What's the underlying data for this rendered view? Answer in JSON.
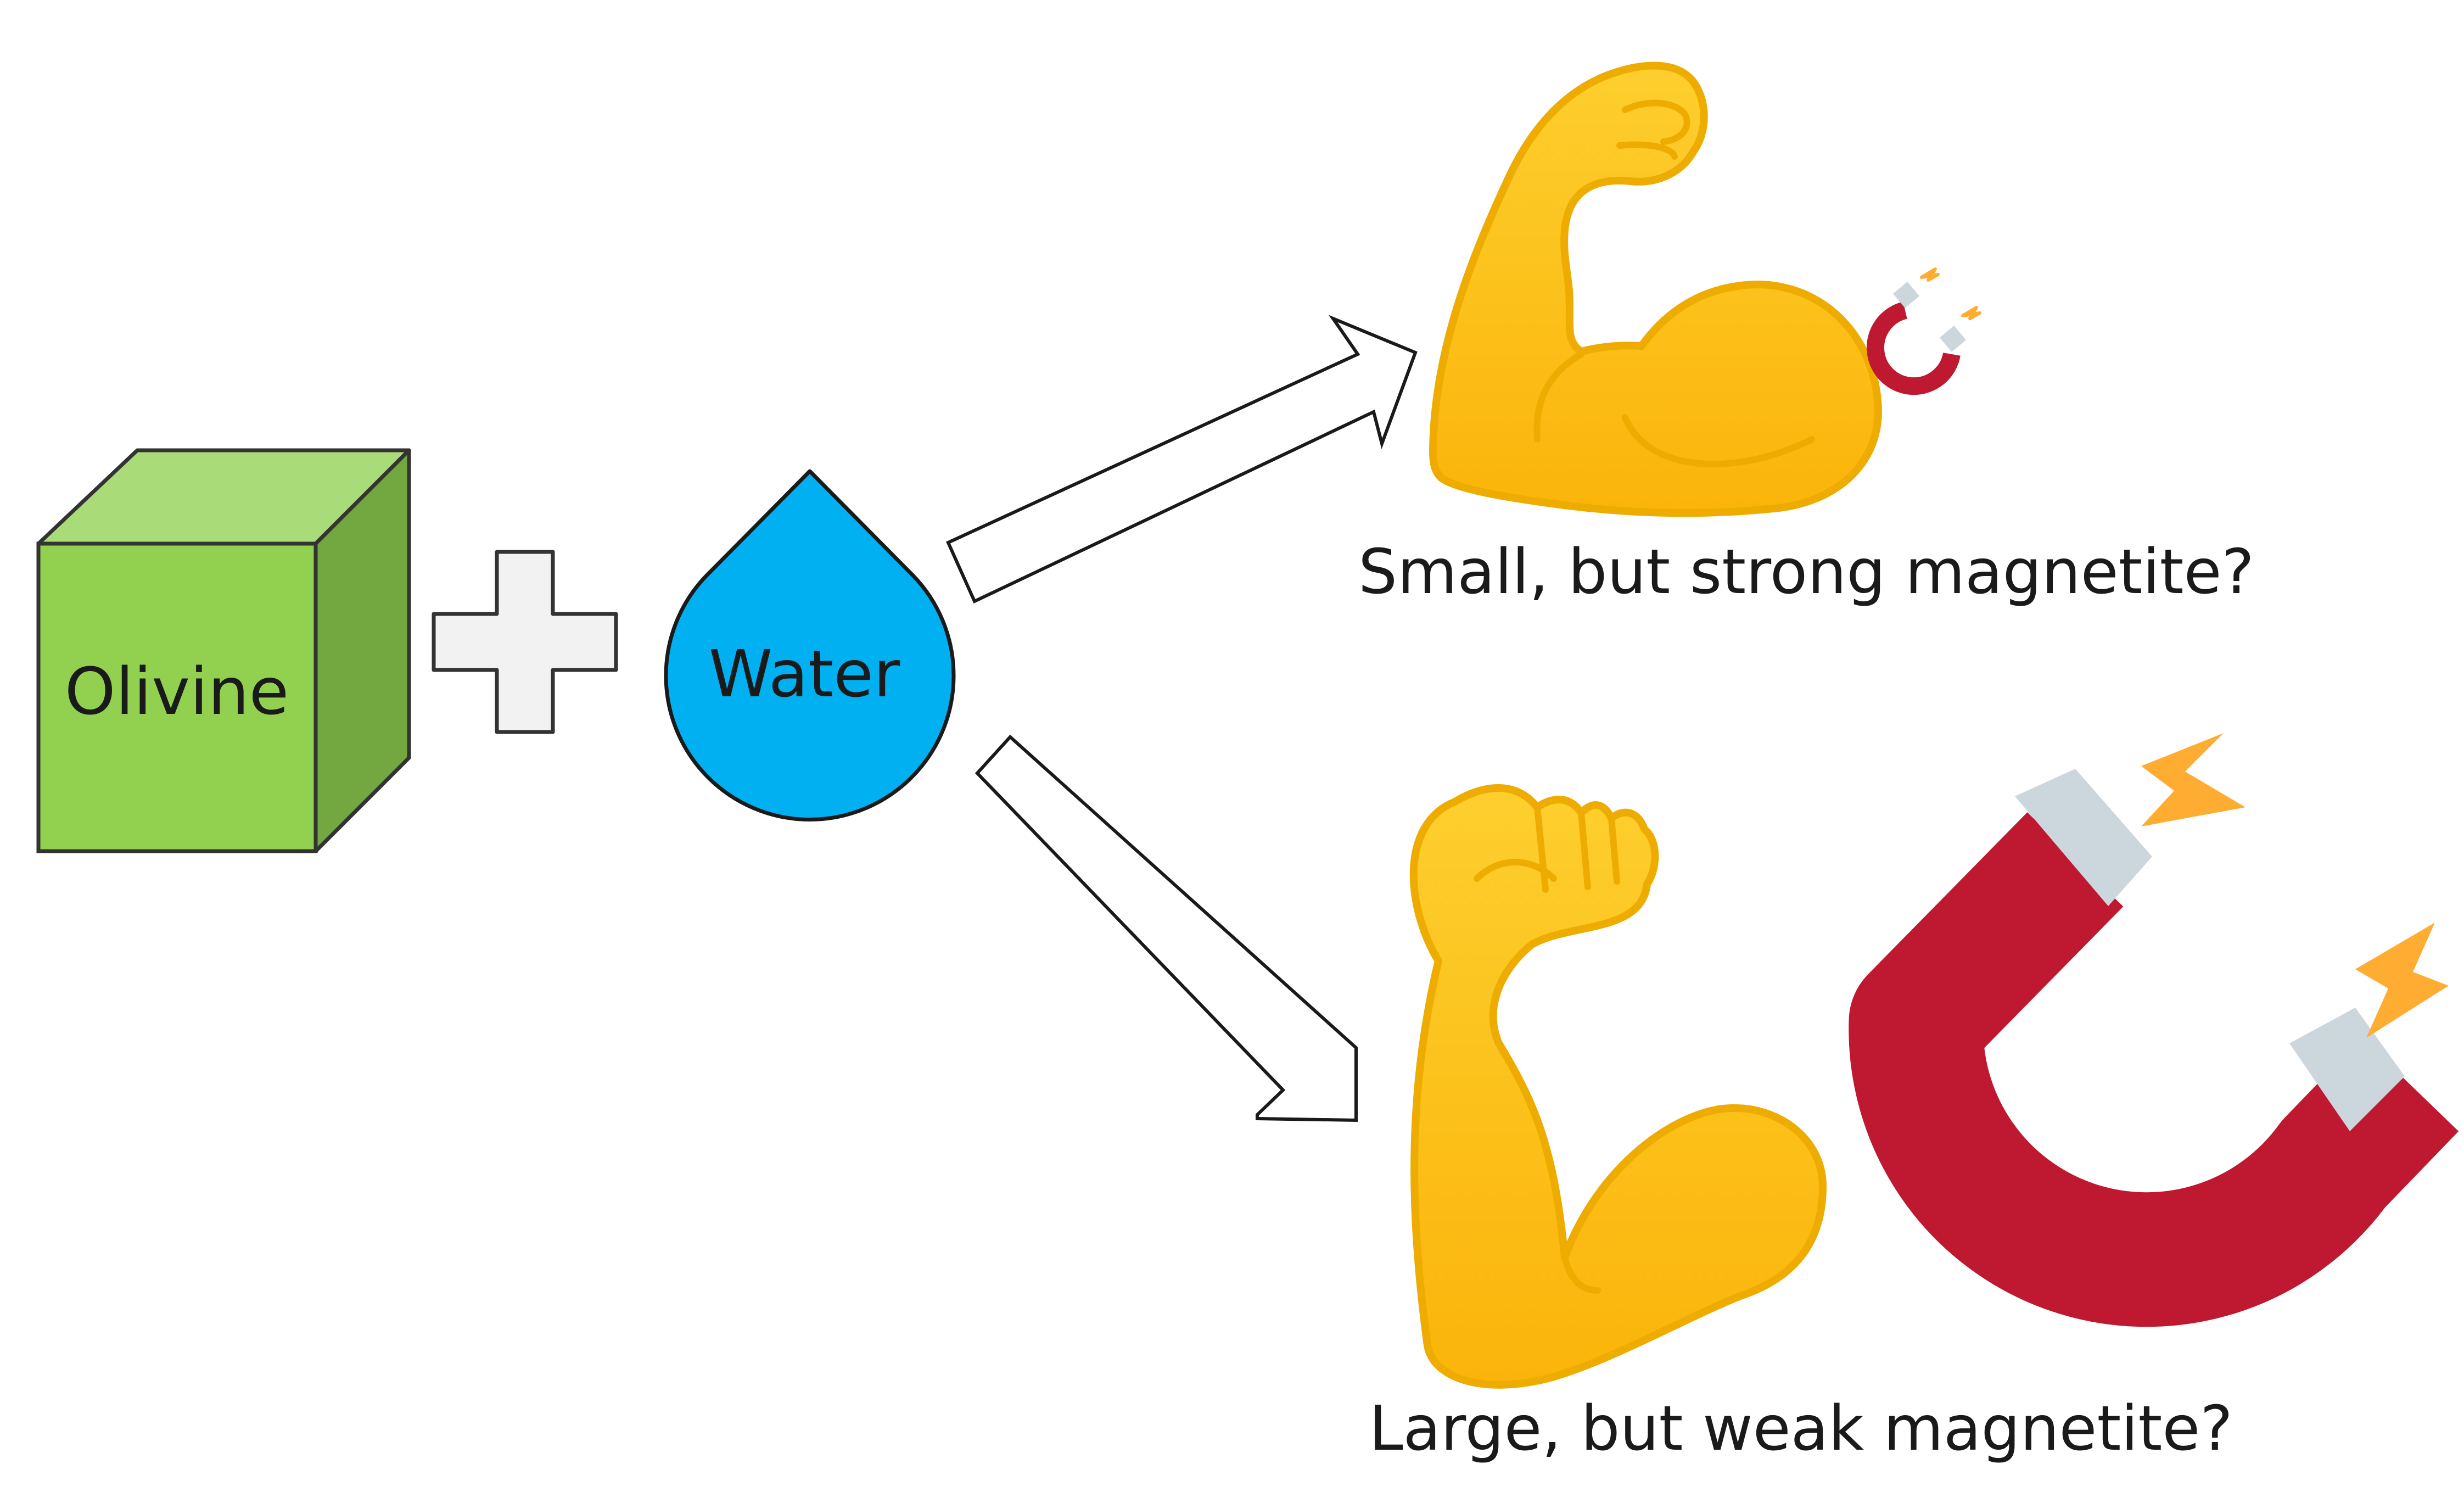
{
  "diagram": {
    "olivine": {
      "label": "Olivine",
      "front_color": "#92d050",
      "top_color": "#a9dc78",
      "side_color": "#72a83f",
      "icon": "cube-icon"
    },
    "plus": {
      "icon": "plus-icon",
      "color": "#f2f2f2"
    },
    "water": {
      "label": "Water",
      "color": "#00b0f0",
      "icon": "water-drop-icon"
    },
    "outcomes": {
      "small": {
        "label": "Small, but strong magnetite?",
        "icon_arm": "flexed-biceps-icon",
        "icon_magnet": "magnet-icon"
      },
      "large": {
        "label": "Large, but weak magnetite?",
        "icon_arm": "flexed-biceps-icon",
        "icon_magnet": "magnet-icon"
      }
    },
    "colors": {
      "arm_fill": "#fcc21b",
      "arm_stroke": "#eeac00",
      "magnet_red": "#be1931",
      "magnet_tip": "#ccd6dd",
      "spark": "#ffac33"
    }
  }
}
